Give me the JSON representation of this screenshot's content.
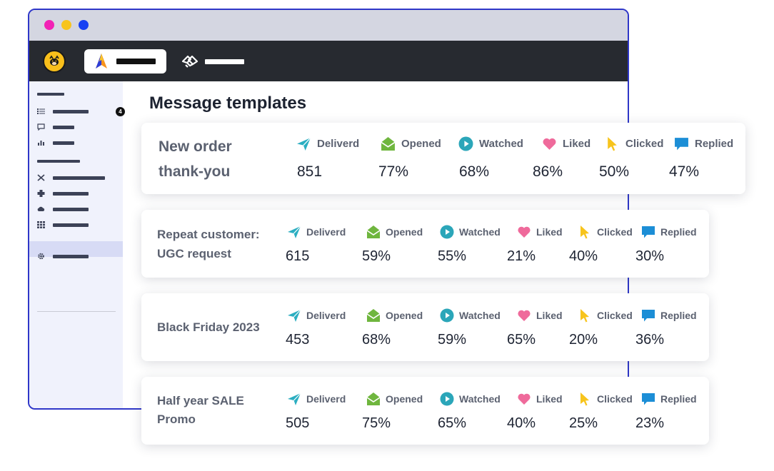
{
  "page": {
    "title": "Message templates"
  },
  "sidebar": {
    "badge": "4"
  },
  "icons": {
    "deliverd": "paper-plane-icon",
    "opened": "open-envelope-icon",
    "watched": "play-icon",
    "liked": "heart-icon",
    "clicked": "cursor-icon",
    "replied": "speech-bubble-icon"
  },
  "colors": {
    "accent": "#2f37c8",
    "deliverd": "#2baec1",
    "opened": "#6fb63e",
    "watched": "#2ba6b9",
    "liked": "#ef6a9b",
    "clicked": "#f7c41d",
    "replied": "#1c8ed6"
  },
  "templates": [
    {
      "name_line1": "New order",
      "name_line2": "thank-you",
      "metrics": [
        {
          "label": "Deliverd",
          "value": "851"
        },
        {
          "label": "Opened",
          "value": "77%"
        },
        {
          "label": "Watched",
          "value": "68%"
        },
        {
          "label": "Liked",
          "value": "86%"
        },
        {
          "label": "Clicked",
          "value": "50%"
        },
        {
          "label": "Replied",
          "value": "47%"
        }
      ]
    },
    {
      "name_line1": "Repeat customer:",
      "name_line2": "UGC request",
      "metrics": [
        {
          "label": "Deliverd",
          "value": "615"
        },
        {
          "label": "Opened",
          "value": "59%"
        },
        {
          "label": "Watched",
          "value": "55%"
        },
        {
          "label": "Liked",
          "value": "21%"
        },
        {
          "label": "Clicked",
          "value": "40%"
        },
        {
          "label": "Replied",
          "value": "30%"
        }
      ]
    },
    {
      "name_line1": "Black Friday 2023",
      "name_line2": "",
      "metrics": [
        {
          "label": "Deliverd",
          "value": "453"
        },
        {
          "label": "Opened",
          "value": "68%"
        },
        {
          "label": "Watched",
          "value": "59%"
        },
        {
          "label": "Liked",
          "value": "65%"
        },
        {
          "label": "Clicked",
          "value": "20%"
        },
        {
          "label": "Replied",
          "value": "36%"
        }
      ]
    },
    {
      "name_line1": "Half year SALE",
      "name_line2": "Promo",
      "metrics": [
        {
          "label": "Deliverd",
          "value": "505"
        },
        {
          "label": "Opened",
          "value": "75%"
        },
        {
          "label": "Watched",
          "value": "65%"
        },
        {
          "label": "Liked",
          "value": "40%"
        },
        {
          "label": "Clicked",
          "value": "25%"
        },
        {
          "label": "Replied",
          "value": "23%"
        }
      ]
    }
  ]
}
